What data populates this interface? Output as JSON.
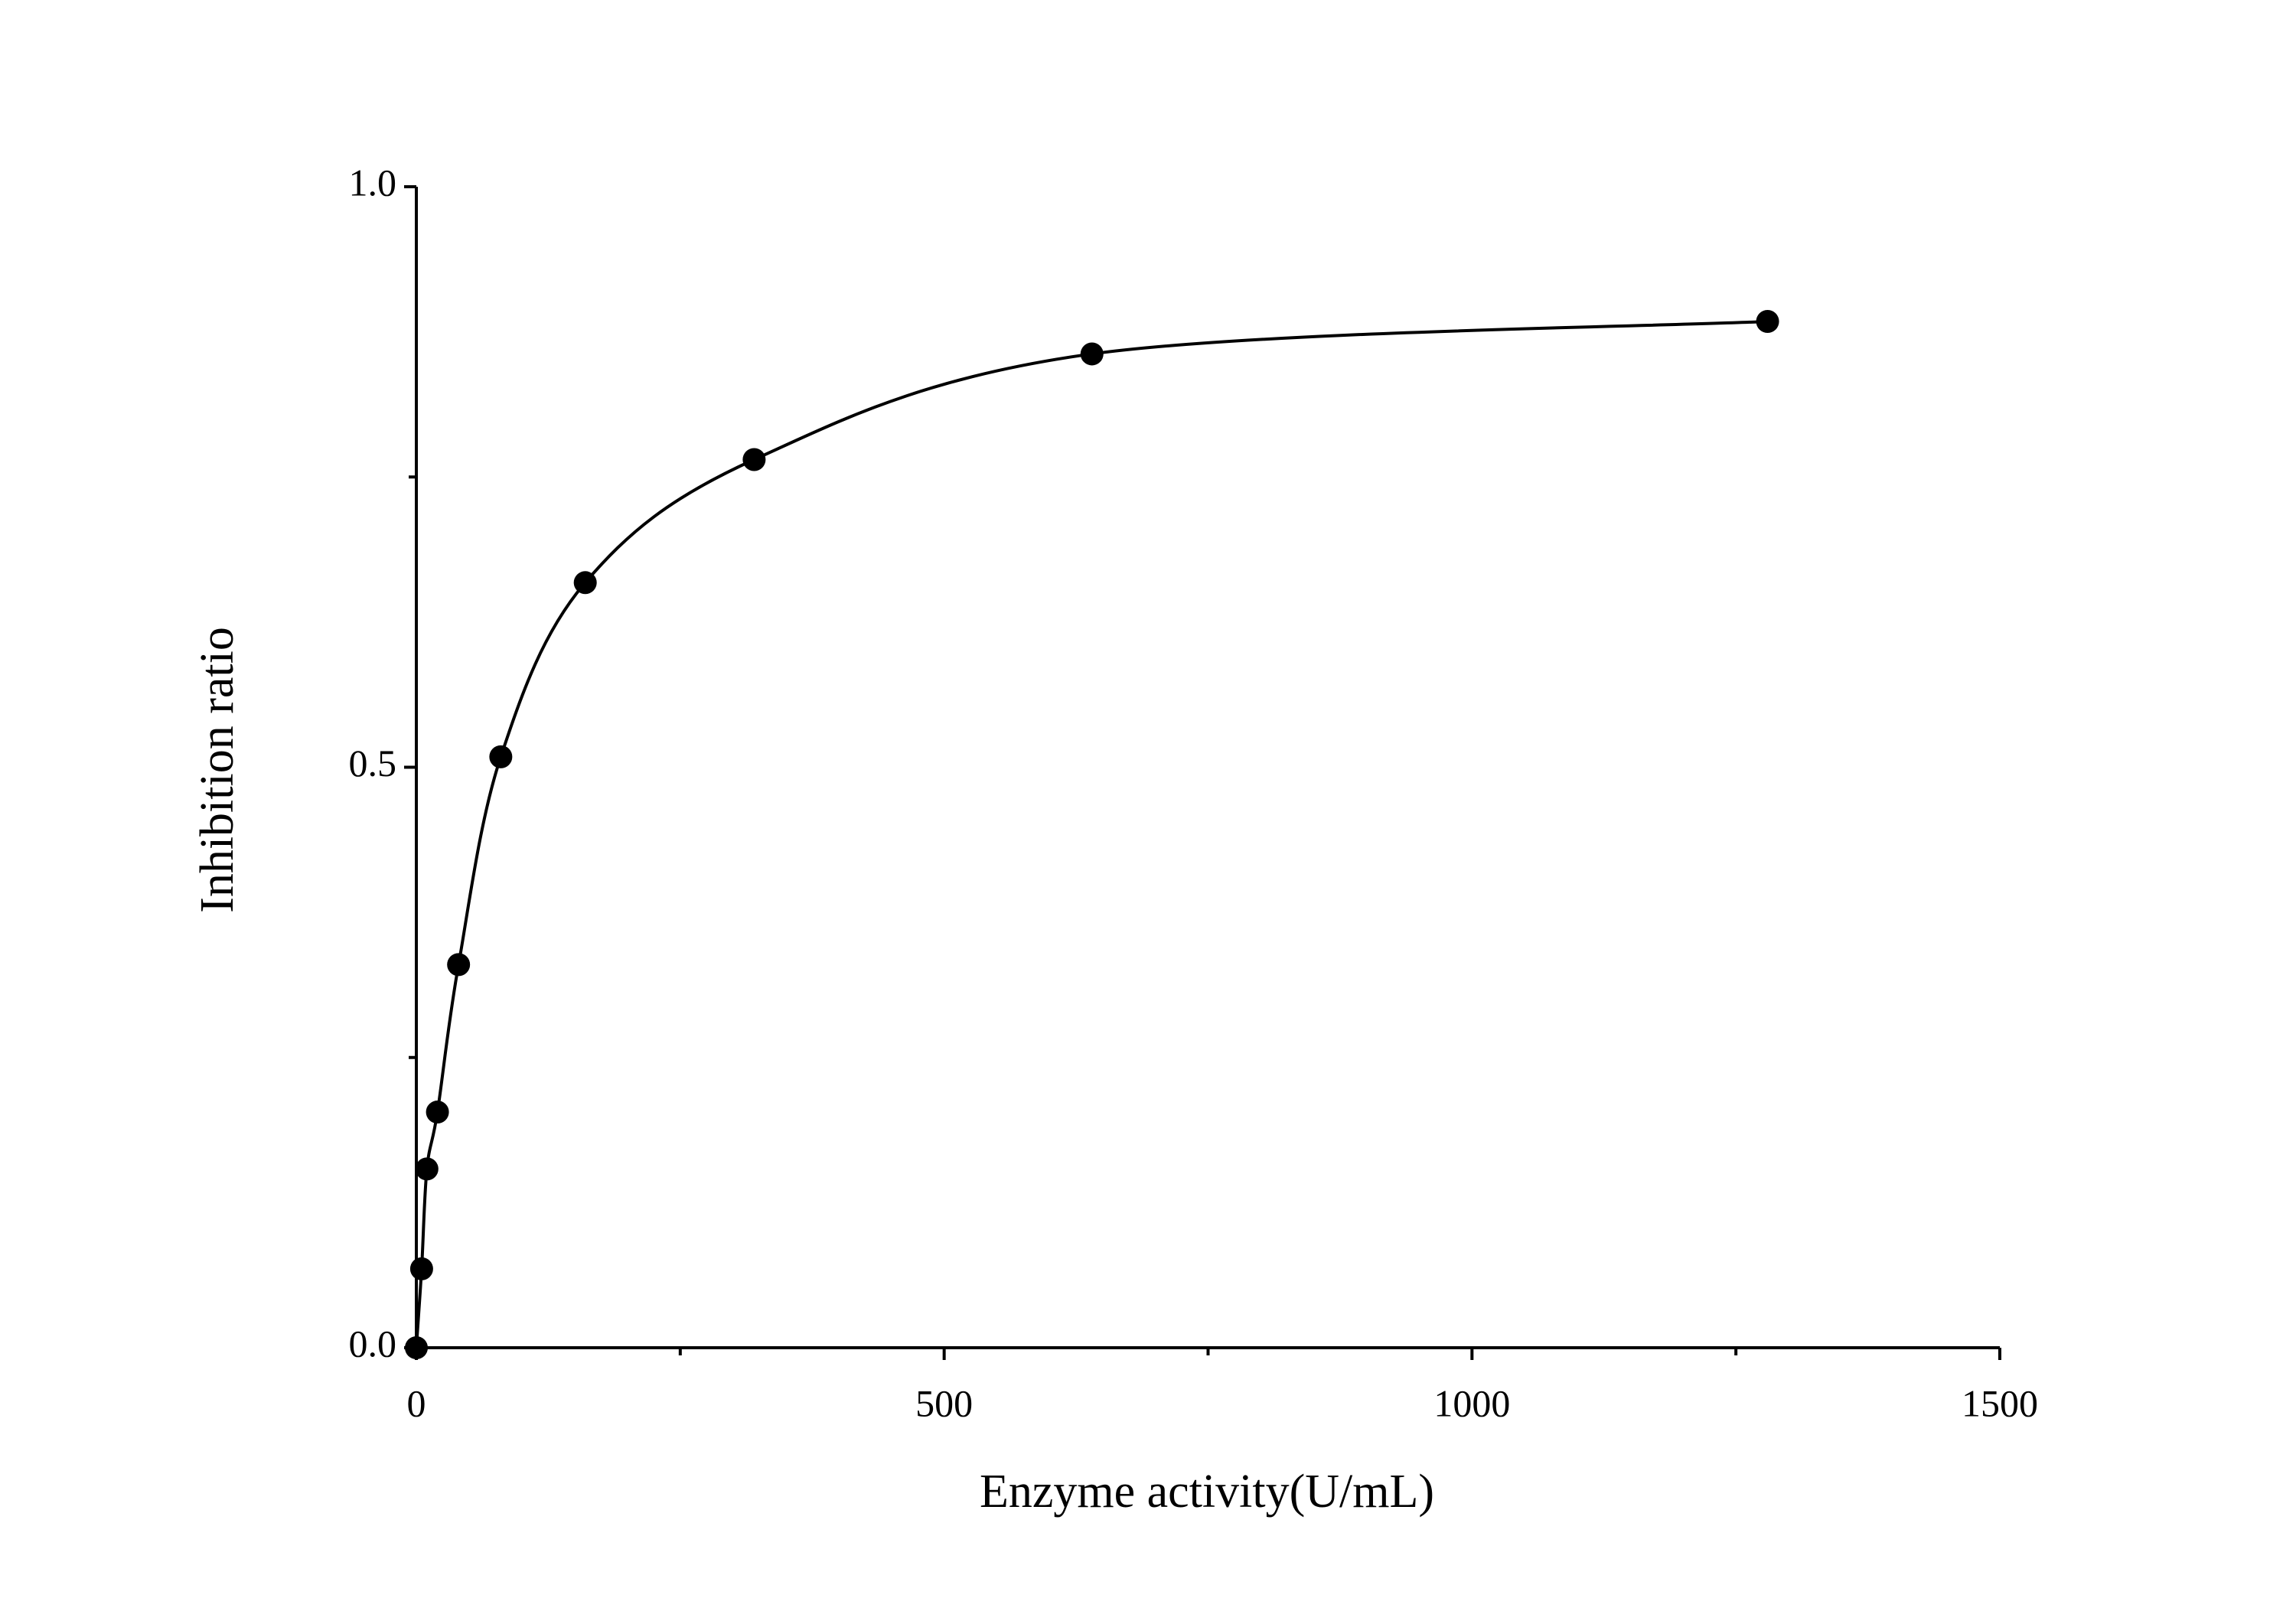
{
  "chart_data": {
    "type": "scatter",
    "x_label": "Enzyme activity(U/mL)",
    "y_label": "Inhibition ratio",
    "series": [
      {
        "color": "#000000",
        "x": [
          0,
          5,
          10,
          20,
          40,
          80,
          160,
          320,
          640,
          1280
        ],
        "values": [
          0,
          0.068,
          0.154,
          0.203,
          0.33,
          0.509,
          0.659,
          0.765,
          0.856,
          0.884
        ]
      }
    ],
    "xlim": [
      0,
      1500
    ],
    "xticks": [
      0,
      500,
      1000,
      1500
    ],
    "xticks_minor": [
      250,
      750,
      1250
    ],
    "ylim": [
      0,
      1
    ],
    "yticks": [
      {
        "value": 0,
        "label": "0.0"
      },
      {
        "value": 0.5,
        "label": "0.5"
      },
      {
        "value": 1,
        "label": "1.0"
      }
    ],
    "yticks_minor": [
      0.25,
      0.75
    ]
  }
}
